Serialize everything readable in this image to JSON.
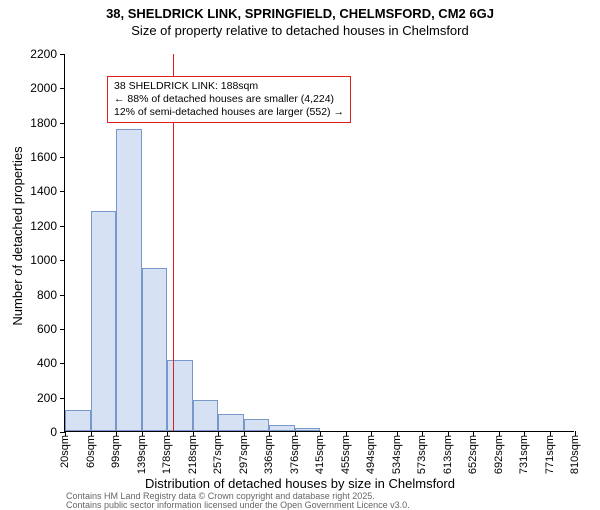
{
  "titles": {
    "main": "38, SHELDRICK LINK, SPRINGFIELD, CHELMSFORD, CM2 6GJ",
    "sub": "Size of property relative to detached houses in Chelmsford"
  },
  "ylabel": "Number of detached properties",
  "xlabel": "Distribution of detached houses by size in Chelmsford",
  "footer": {
    "line1": "Contains HM Land Registry data © Crown copyright and database right 2025.",
    "line2": "Contains public sector information licensed under the Open Government Licence v3.0."
  },
  "chart": {
    "type": "histogram",
    "ylim": [
      0,
      2200
    ],
    "ytick_step": 200,
    "x_start": 20,
    "x_step": 39.5,
    "x_unit": "sqm",
    "x_tick_count": 21,
    "bars": [
      120,
      1280,
      1760,
      950,
      415,
      180,
      100,
      70,
      35,
      20,
      0,
      0,
      0,
      0,
      0,
      0,
      0,
      0,
      0,
      0
    ],
    "bar_fill": "#d6e2f3",
    "bar_stroke": "#7898c9",
    "ref_value": 188,
    "ref_color": "#e02020",
    "annotation": {
      "title": "38 SHELDRICK LINK: 188sqm",
      "line1": "← 88% of detached houses are smaller (4,224)",
      "line2": "12% of semi-detached houses are larger (552) →"
    },
    "background_color": "#ffffff",
    "axis_color": "#000000",
    "tick_fontsize": 12,
    "label_fontsize": 13,
    "title_fontsize": 13
  }
}
